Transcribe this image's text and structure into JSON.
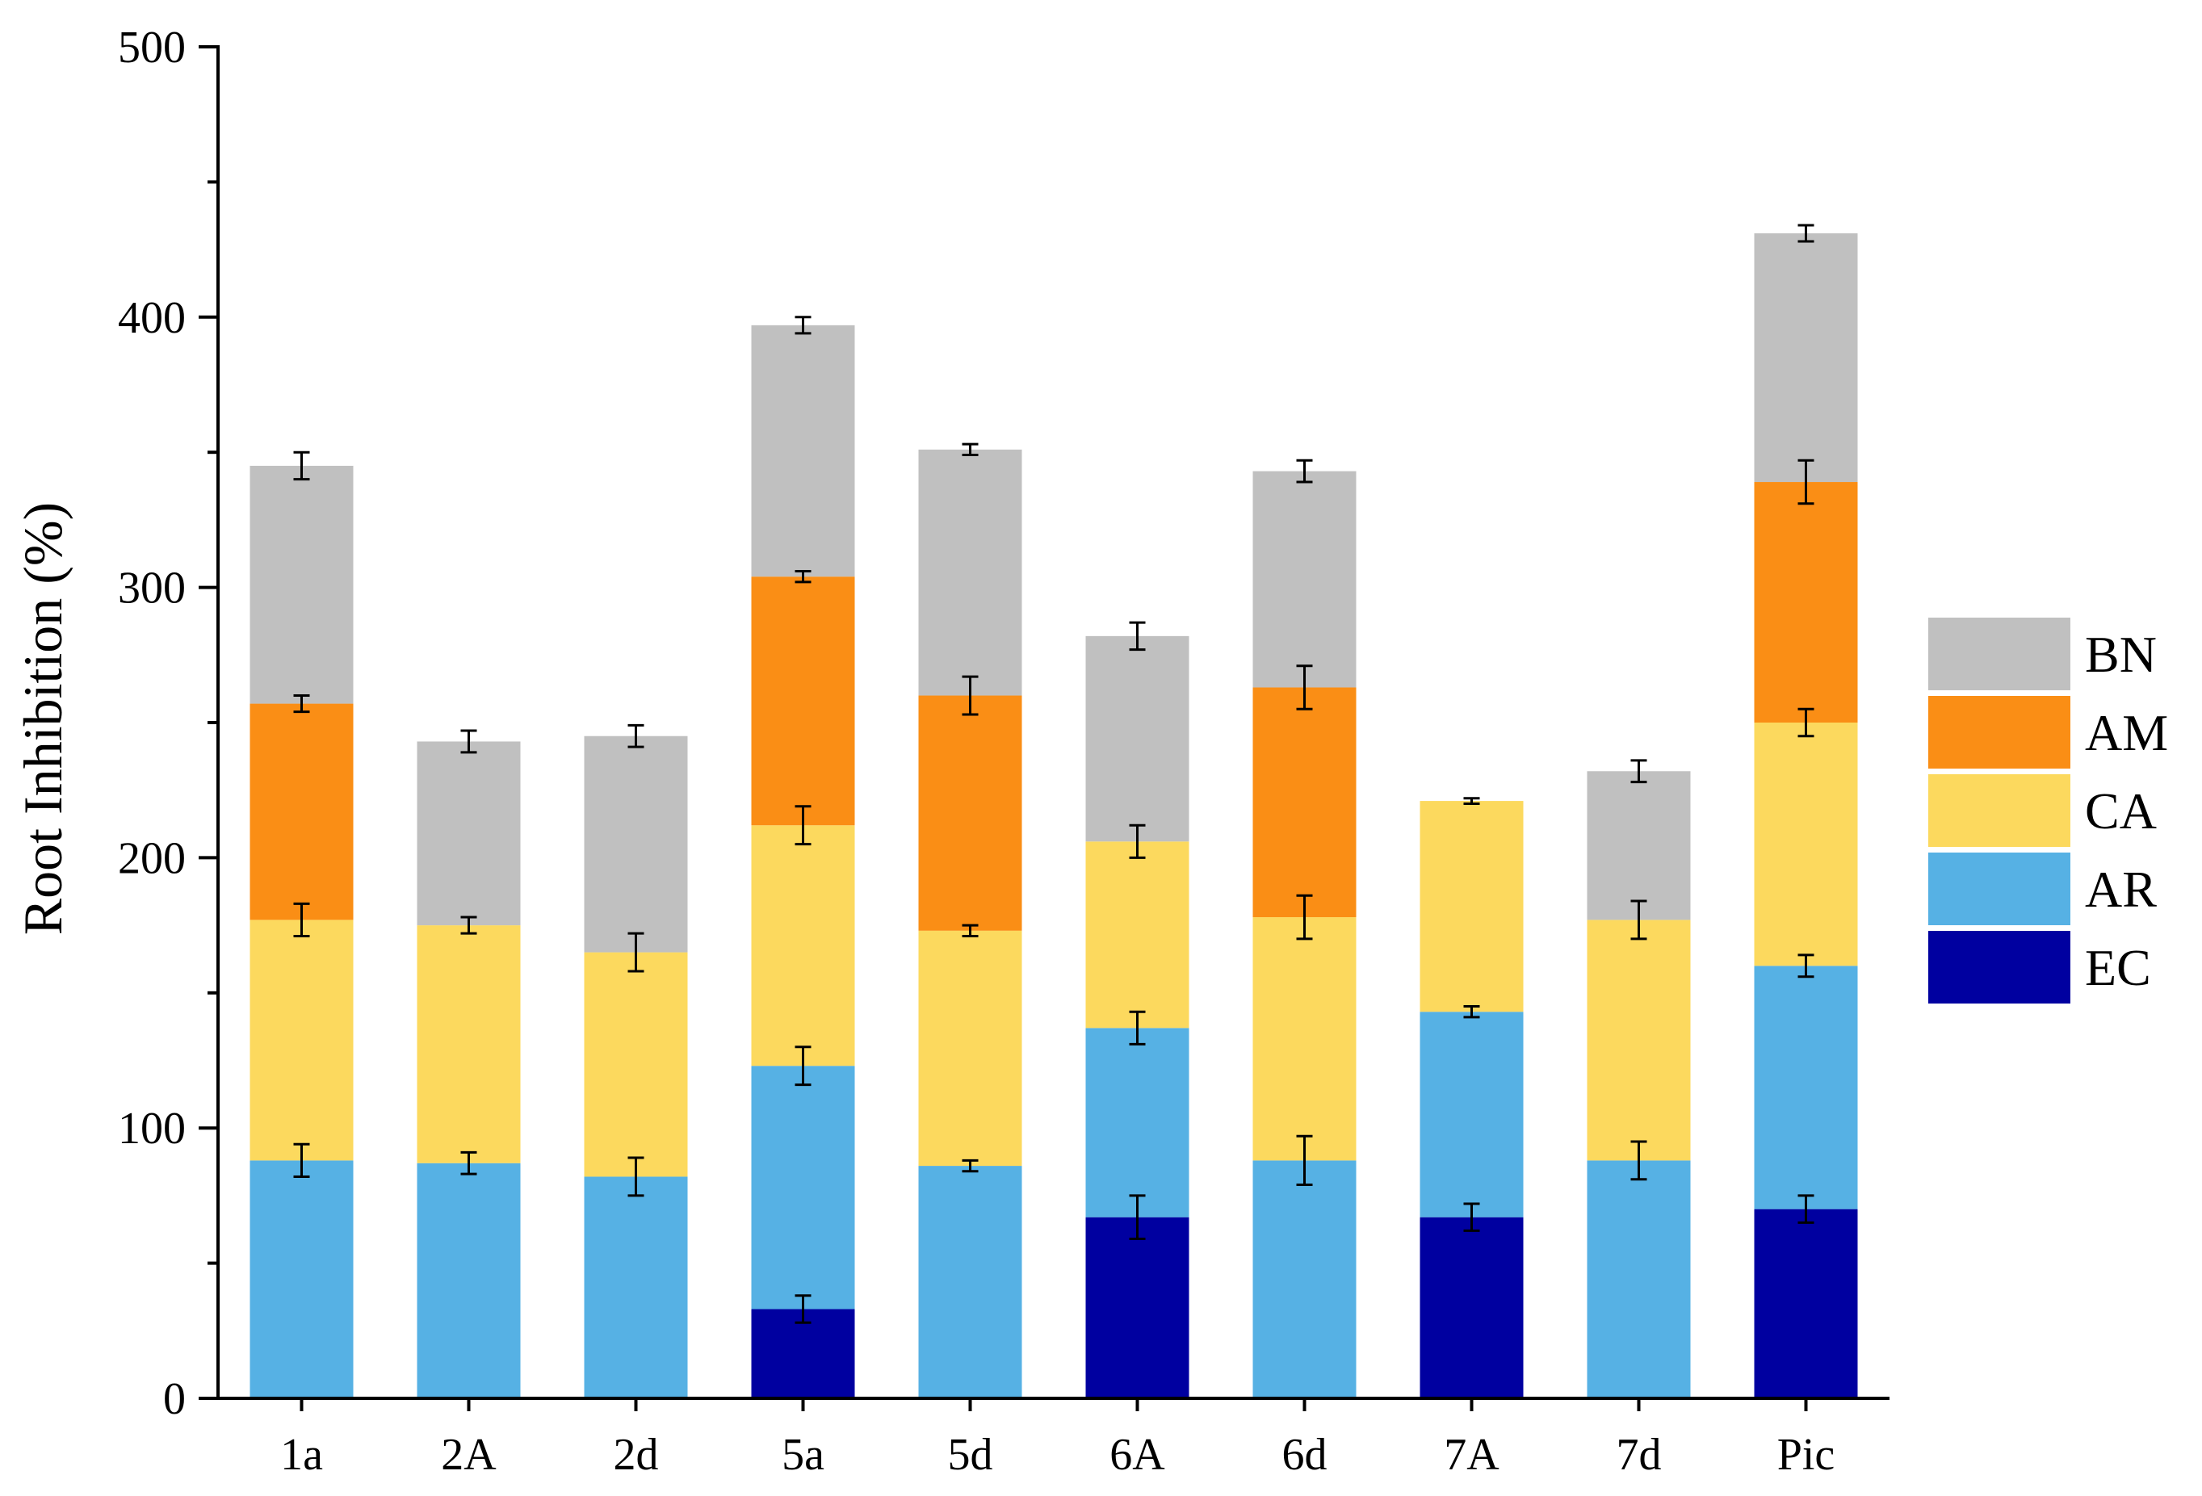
{
  "chart_data": {
    "type": "bar",
    "stacked": true,
    "title": "",
    "xlabel": "",
    "ylabel": "Root Inhibition (%)",
    "ylim": [
      0,
      500
    ],
    "yticks": [
      0,
      100,
      200,
      300,
      400,
      500
    ],
    "grid": false,
    "legend_position": "right",
    "categories": [
      "1a",
      "2A",
      "2d",
      "5a",
      "5d",
      "6A",
      "6d",
      "7A",
      "7d",
      "Pic"
    ],
    "series": [
      {
        "name": "EC",
        "color": "#0000a0",
        "values": [
          0,
          0,
          0,
          33,
          0,
          67,
          0,
          67,
          0,
          70
        ],
        "errors": [
          0,
          0,
          0,
          5,
          0,
          8,
          0,
          5,
          0,
          5
        ]
      },
      {
        "name": "AR",
        "color": "#56b1e4",
        "values": [
          88,
          87,
          82,
          90,
          86,
          70,
          88,
          76,
          88,
          90
        ],
        "errors": [
          6,
          4,
          7,
          7,
          2,
          6,
          9,
          2,
          7,
          4
        ]
      },
      {
        "name": "CA",
        "color": "#fcd95e",
        "values": [
          89,
          88,
          83,
          89,
          87,
          69,
          90,
          78,
          89,
          90
        ],
        "errors": [
          6,
          3,
          7,
          7,
          2,
          6,
          8,
          1,
          7,
          5
        ]
      },
      {
        "name": "AM",
        "color": "#fa8e15",
        "values": [
          80,
          0,
          0,
          92,
          87,
          0,
          85,
          0,
          0,
          89
        ],
        "errors": [
          3,
          0,
          0,
          2,
          7,
          0,
          8,
          0,
          0,
          8
        ]
      },
      {
        "name": "BN",
        "color": "#c0c0c0",
        "values": [
          88,
          68,
          80,
          93,
          91,
          76,
          80,
          0,
          55,
          92
        ],
        "errors": [
          5,
          4,
          4,
          3,
          2,
          5,
          4,
          2,
          4,
          3
        ]
      }
    ],
    "legend_order": [
      "BN",
      "AM",
      "CA",
      "AR",
      "EC"
    ]
  }
}
